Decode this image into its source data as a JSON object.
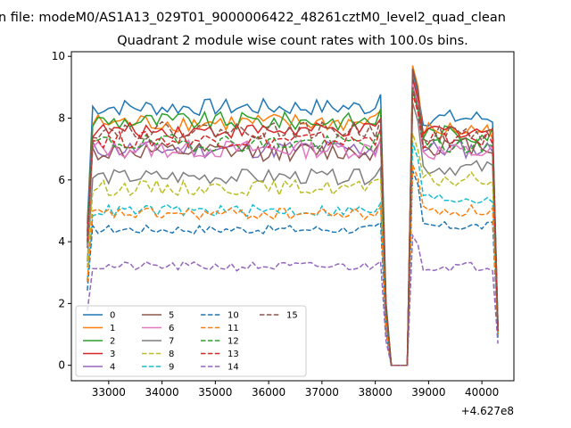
{
  "suptitle": "n file: modeM0/AS1A13_029T01_9000006422_48261cztM0_level2_quad_clean",
  "chart_data": {
    "type": "line",
    "title": "Quadrant 2 module wise count rates with 100.0s bins.",
    "xlabel": "",
    "ylabel": "",
    "x_offset_label": "+4.627e8",
    "xlim": [
      32300,
      40600
    ],
    "ylim": [
      -0.5,
      10.15
    ],
    "xticks": [
      33000,
      34000,
      35000,
      36000,
      37000,
      38000,
      39000,
      40000
    ],
    "xtick_labels": [
      "33000",
      "34000",
      "35000",
      "36000",
      "37000",
      "38000",
      "39000",
      "40000"
    ],
    "yticks": [
      0,
      2,
      4,
      6,
      8,
      10
    ],
    "ytick_labels": [
      "0",
      "2",
      "4",
      "6",
      "8",
      "10"
    ],
    "grid": false,
    "legend_position": "lower-left",
    "legend_columns": 4,
    "x_start": 32600,
    "x_step": 100,
    "series": [
      {
        "name": "0",
        "color": "#1f77b4",
        "dashed": false,
        "base": 8.35,
        "gap_level": 0,
        "peak": 9.5,
        "post": 8.0,
        "end": 1.3,
        "noise": 0.28
      },
      {
        "name": "1",
        "color": "#ff7f0e",
        "dashed": false,
        "base": 7.85,
        "gap_level": 0,
        "peak": 9.7,
        "post": 7.6,
        "end": 1.2,
        "noise": 0.3
      },
      {
        "name": "2",
        "color": "#2ca02c",
        "dashed": false,
        "base": 7.9,
        "gap_level": 0,
        "peak": 9.3,
        "post": 7.5,
        "end": 1.3,
        "noise": 0.3
      },
      {
        "name": "3",
        "color": "#d62728",
        "dashed": false,
        "base": 7.6,
        "gap_level": 0,
        "peak": 9.3,
        "post": 7.6,
        "end": 1.1,
        "noise": 0.25
      },
      {
        "name": "4",
        "color": "#9467bd",
        "dashed": false,
        "base": 7.0,
        "gap_level": 0,
        "peak": 9.0,
        "post": 7.0,
        "end": 1.2,
        "noise": 0.3
      },
      {
        "name": "5",
        "color": "#8c564b",
        "dashed": false,
        "base": 6.9,
        "gap_level": 0,
        "peak": 9.6,
        "post": 7.1,
        "end": 1.2,
        "noise": 0.3
      },
      {
        "name": "6",
        "color": "#e377c2",
        "dashed": false,
        "base": 7.0,
        "gap_level": 0,
        "peak": 9.1,
        "post": 6.9,
        "end": 1.1,
        "noise": 0.3
      },
      {
        "name": "7",
        "color": "#7f7f7f",
        "dashed": false,
        "base": 6.1,
        "gap_level": 0,
        "peak": 8.5,
        "post": 6.4,
        "end": 1.0,
        "noise": 0.25
      },
      {
        "name": "8",
        "color": "#bcbd22",
        "dashed": true,
        "base": 5.75,
        "gap_level": 0,
        "peak": 7.5,
        "post": 6.0,
        "end": 1.0,
        "noise": 0.25
      },
      {
        "name": "9",
        "color": "#17becf",
        "dashed": true,
        "base": 5.0,
        "gap_level": 0,
        "peak": 7.2,
        "post": 5.4,
        "end": 1.0,
        "noise": 0.2
      },
      {
        "name": "10",
        "color": "#1f77b4",
        "dashed": true,
        "base": 4.4,
        "gap_level": 0,
        "peak": 6.3,
        "post": 4.5,
        "end": 0.9,
        "noise": 0.15
      },
      {
        "name": "11",
        "color": "#ff7f0e",
        "dashed": true,
        "base": 4.9,
        "gap_level": 0,
        "peak": 6.5,
        "post": 5.0,
        "end": 1.0,
        "noise": 0.2
      },
      {
        "name": "12",
        "color": "#2ca02c",
        "dashed": true,
        "base": 7.2,
        "gap_level": 0,
        "peak": 8.9,
        "post": 7.1,
        "end": 1.1,
        "noise": 0.28
      },
      {
        "name": "13",
        "color": "#d62728",
        "dashed": true,
        "base": 7.3,
        "gap_level": 0,
        "peak": 8.8,
        "post": 7.3,
        "end": 1.1,
        "noise": 0.28
      },
      {
        "name": "14",
        "color": "#9467bd",
        "dashed": true,
        "base": 3.2,
        "gap_level": 0,
        "peak": 4.2,
        "post": 3.2,
        "end": 0.7,
        "noise": 0.15
      },
      {
        "name": "15",
        "color": "#8c564b",
        "dashed": true,
        "base": 7.6,
        "gap_level": 0,
        "peak": 9.0,
        "post": 7.5,
        "end": 1.1,
        "noise": 0.28
      }
    ]
  }
}
